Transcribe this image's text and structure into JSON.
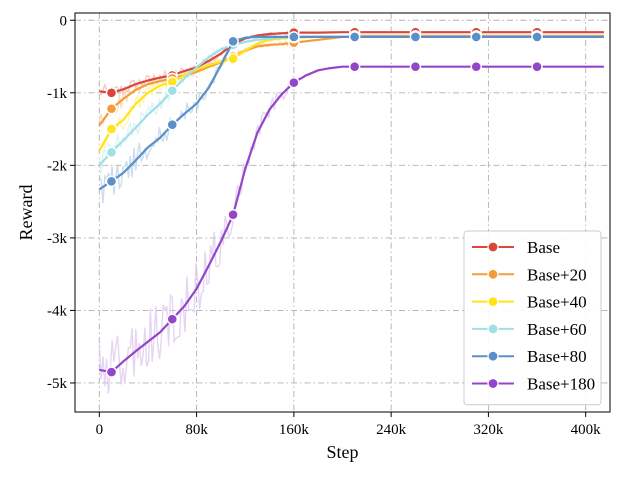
{
  "chart_data": {
    "type": "line",
    "title": "",
    "xlabel": "Step",
    "ylabel": "Reward",
    "xlim": [
      -20000,
      420000
    ],
    "ylim": [
      -5400,
      100
    ],
    "xticks": [
      0,
      80000,
      160000,
      240000,
      320000,
      400000
    ],
    "xtick_labels": [
      "0",
      "80k",
      "160k",
      "240k",
      "320k",
      "400k"
    ],
    "yticks": [
      0,
      -1000,
      -2000,
      -3000,
      -4000,
      -5000
    ],
    "ytick_labels": [
      "0",
      "-1k",
      "-2k",
      "-3k",
      "-4k",
      "-5k"
    ],
    "grid": true,
    "legend_position": "lower-right",
    "series": [
      {
        "name": "Base",
        "color": "#d9473b",
        "raw_color": "#f2b6ae",
        "x": [
          0,
          10000,
          20000,
          30000,
          40000,
          50000,
          60000,
          70000,
          80000,
          90000,
          100000,
          110000,
          120000,
          130000,
          140000,
          150000,
          160000,
          180000,
          200000,
          210000,
          240000,
          260000,
          300000,
          310000,
          340000,
          360000,
          400000,
          415000
        ],
        "y": [
          -980,
          -1000,
          -950,
          -880,
          -830,
          -790,
          -760,
          -700,
          -650,
          -560,
          -460,
          -330,
          -250,
          -210,
          -190,
          -180,
          -170,
          -170,
          -165,
          -165,
          -165,
          -165,
          -165,
          -165,
          -165,
          -165,
          -165,
          -165
        ],
        "markers_x": [
          10000,
          60000,
          110000,
          160000,
          210000,
          260000,
          310000,
          360000
        ]
      },
      {
        "name": "Base+20",
        "color": "#f39c3c",
        "raw_color": "#f9d3a8",
        "x": [
          0,
          10000,
          20000,
          30000,
          40000,
          50000,
          60000,
          70000,
          80000,
          90000,
          100000,
          110000,
          120000,
          130000,
          140000,
          150000,
          160000,
          180000,
          200000,
          210000,
          240000,
          260000,
          300000,
          310000,
          340000,
          360000,
          400000,
          415000
        ],
        "y": [
          -1450,
          -1220,
          -1080,
          -960,
          -880,
          -840,
          -800,
          -760,
          -710,
          -640,
          -580,
          -500,
          -420,
          -360,
          -340,
          -330,
          -310,
          -270,
          -230,
          -215,
          -215,
          -215,
          -215,
          -215,
          -215,
          -215,
          -215,
          -215
        ],
        "markers_x": [
          10000,
          60000,
          110000,
          160000,
          210000,
          260000,
          310000,
          360000
        ]
      },
      {
        "name": "Base+40",
        "color": "#ffe419",
        "raw_color": "#fff1a0",
        "x": [
          0,
          10000,
          20000,
          30000,
          40000,
          50000,
          60000,
          70000,
          80000,
          90000,
          100000,
          110000,
          120000,
          130000,
          140000,
          150000,
          160000,
          180000,
          200000,
          210000,
          240000,
          260000,
          300000,
          310000,
          340000,
          360000,
          400000,
          415000
        ],
        "y": [
          -1800,
          -1500,
          -1370,
          -1150,
          -1000,
          -900,
          -850,
          -760,
          -680,
          -620,
          -570,
          -530,
          -420,
          -320,
          -270,
          -250,
          -240,
          -230,
          -230,
          -230,
          -230,
          -230,
          -230,
          -230,
          -230,
          -230,
          -230,
          -230
        ],
        "markers_x": [
          10000,
          60000,
          110000,
          160000,
          210000,
          260000,
          310000,
          360000
        ]
      },
      {
        "name": "Base+60",
        "color": "#9fdfe6",
        "raw_color": "#d4eff2",
        "x": [
          0,
          10000,
          20000,
          30000,
          40000,
          50000,
          60000,
          70000,
          80000,
          90000,
          100000,
          110000,
          120000,
          130000,
          140000,
          150000,
          160000,
          180000,
          200000,
          210000,
          240000,
          260000,
          300000,
          310000,
          340000,
          360000,
          400000,
          415000
        ],
        "y": [
          -2000,
          -1820,
          -1650,
          -1480,
          -1300,
          -1150,
          -970,
          -800,
          -650,
          -510,
          -400,
          -340,
          -300,
          -270,
          -250,
          -240,
          -230,
          -225,
          -225,
          -225,
          -225,
          -225,
          -225,
          -225,
          -225,
          -225,
          -225,
          -225
        ],
        "markers_x": [
          10000,
          60000,
          110000,
          160000,
          210000,
          260000,
          310000,
          360000
        ]
      },
      {
        "name": "Base+80",
        "color": "#5b8fc7",
        "raw_color": "#bcd0e8",
        "x": [
          0,
          10000,
          20000,
          30000,
          40000,
          50000,
          60000,
          70000,
          80000,
          90000,
          100000,
          110000,
          120000,
          130000,
          140000,
          150000,
          160000,
          180000,
          200000,
          210000,
          240000,
          260000,
          300000,
          310000,
          340000,
          360000,
          400000,
          415000
        ],
        "y": [
          -2330,
          -2220,
          -2100,
          -1930,
          -1750,
          -1620,
          -1440,
          -1290,
          -1150,
          -930,
          -620,
          -290,
          -240,
          -230,
          -230,
          -230,
          -230,
          -230,
          -230,
          -230,
          -230,
          -230,
          -230,
          -230,
          -230,
          -230,
          -230,
          -230
        ],
        "markers_x": [
          10000,
          60000,
          110000,
          160000,
          210000,
          260000,
          310000,
          360000
        ]
      },
      {
        "name": "Base+180",
        "color": "#9446c9",
        "raw_color": "#dcc7ee",
        "x": [
          0,
          10000,
          20000,
          30000,
          40000,
          50000,
          60000,
          70000,
          80000,
          90000,
          100000,
          110000,
          120000,
          130000,
          140000,
          150000,
          160000,
          170000,
          180000,
          190000,
          200000,
          210000,
          240000,
          260000,
          300000,
          310000,
          340000,
          360000,
          400000,
          415000
        ],
        "y": [
          -4820,
          -4850,
          -4700,
          -4560,
          -4430,
          -4300,
          -4120,
          -3940,
          -3700,
          -3380,
          -3050,
          -2680,
          -2050,
          -1550,
          -1230,
          -1020,
          -860,
          -760,
          -690,
          -660,
          -640,
          -640,
          -640,
          -640,
          -640,
          -640,
          -640,
          -640,
          -640,
          -640
        ],
        "markers_x": [
          10000,
          60000,
          110000,
          160000,
          210000,
          260000,
          310000,
          360000
        ]
      }
    ]
  }
}
